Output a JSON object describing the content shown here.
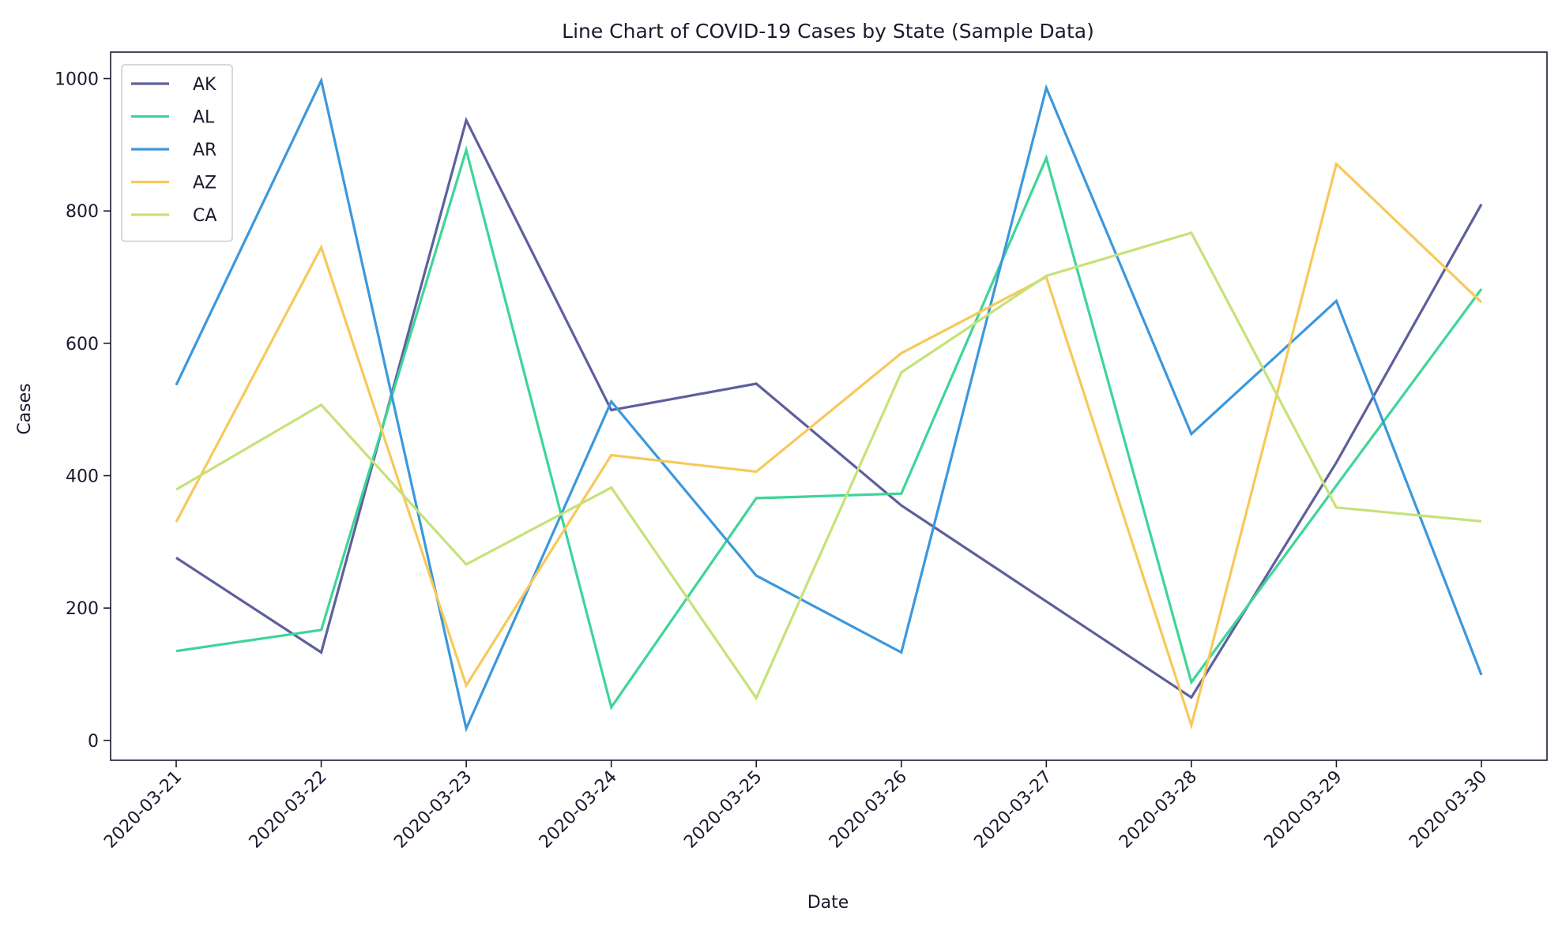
{
  "chart_data": {
    "type": "line",
    "title": "Line Chart of COVID-19 Cases by State (Sample Data)",
    "xlabel": "Date",
    "ylabel": "Cases",
    "x": [
      "2020-03-21",
      "2020-03-22",
      "2020-03-23",
      "2020-03-24",
      "2020-03-25",
      "2020-03-26",
      "2020-03-27",
      "2020-03-28",
      "2020-03-29",
      "2020-03-30"
    ],
    "ylim": [
      -30,
      1040
    ],
    "yticks": [
      0,
      200,
      400,
      600,
      800,
      1000
    ],
    "grid": false,
    "legend_position": "top-left",
    "series": [
      {
        "name": "AK",
        "color": "#5e5f9c",
        "values": [
          276,
          133,
          937,
          499,
          539,
          355,
          210,
          65,
          420,
          810
        ]
      },
      {
        "name": "AL",
        "color": "#3ed598",
        "values": [
          135,
          167,
          892,
          50,
          366,
          373,
          880,
          88,
          385,
          682
        ]
      },
      {
        "name": "AR",
        "color": "#3c98dc",
        "values": [
          537,
          997,
          18,
          512,
          249,
          133,
          986,
          463,
          664,
          99
        ]
      },
      {
        "name": "AZ",
        "color": "#f7c95a",
        "values": [
          330,
          745,
          83,
          431,
          406,
          585,
          700,
          23,
          871,
          662
        ]
      },
      {
        "name": "CA",
        "color": "#c6e278",
        "values": [
          379,
          507,
          266,
          382,
          64,
          556,
          702,
          767,
          352,
          331
        ]
      }
    ]
  }
}
